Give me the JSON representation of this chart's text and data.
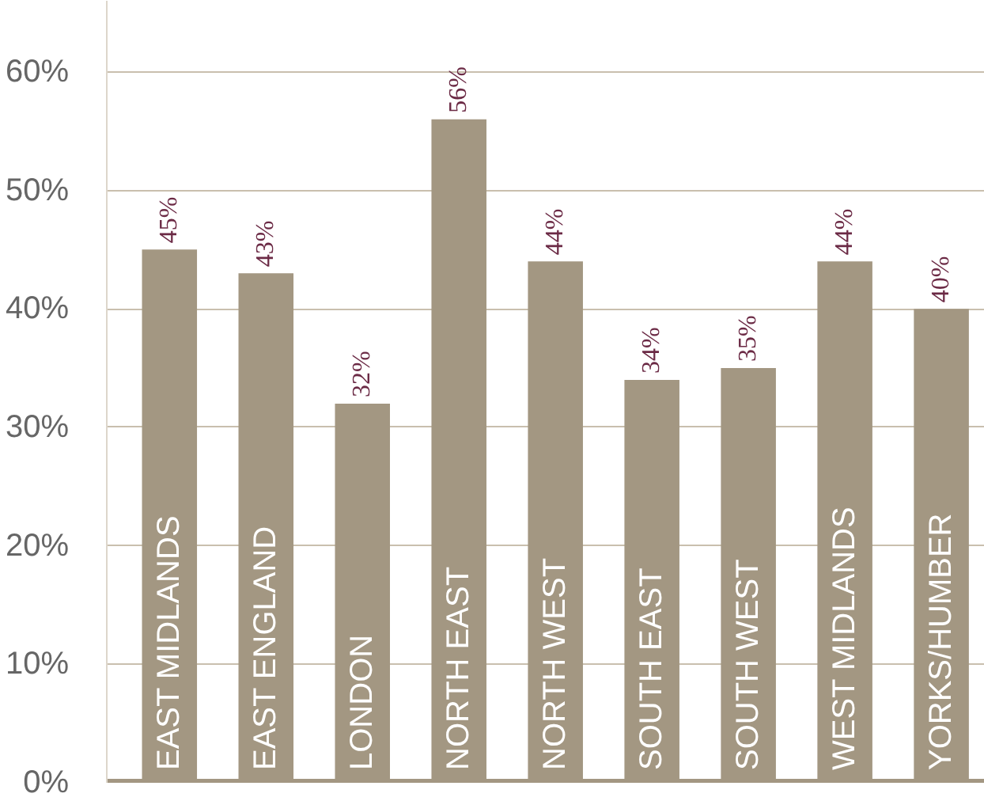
{
  "chart_data": {
    "type": "bar",
    "categories": [
      "EAST MIDLANDS",
      "EAST ENGLAND",
      "LONDON",
      "NORTH EAST",
      "NORTH WEST",
      "SOUTH EAST",
      "SOUTH WEST",
      "WEST MIDLANDS",
      "YORKS/HUMBER"
    ],
    "values": [
      45,
      43,
      32,
      56,
      44,
      34,
      35,
      44,
      40
    ],
    "value_labels": [
      "45%",
      "43%",
      "32%",
      "56%",
      "44%",
      "34%",
      "35%",
      "44%",
      "40%"
    ],
    "color": "#a39782",
    "ylim": [
      0,
      66
    ],
    "yticks": [
      {
        "value": 0,
        "label": "0%"
      },
      {
        "value": 10,
        "label": "10%"
      },
      {
        "value": 20,
        "label": "20%"
      },
      {
        "value": 30,
        "label": "30%"
      },
      {
        "value": 40,
        "label": "40%"
      },
      {
        "value": 50,
        "label": "50%"
      },
      {
        "value": 60,
        "label": "60%"
      }
    ],
    "grid": "y"
  }
}
